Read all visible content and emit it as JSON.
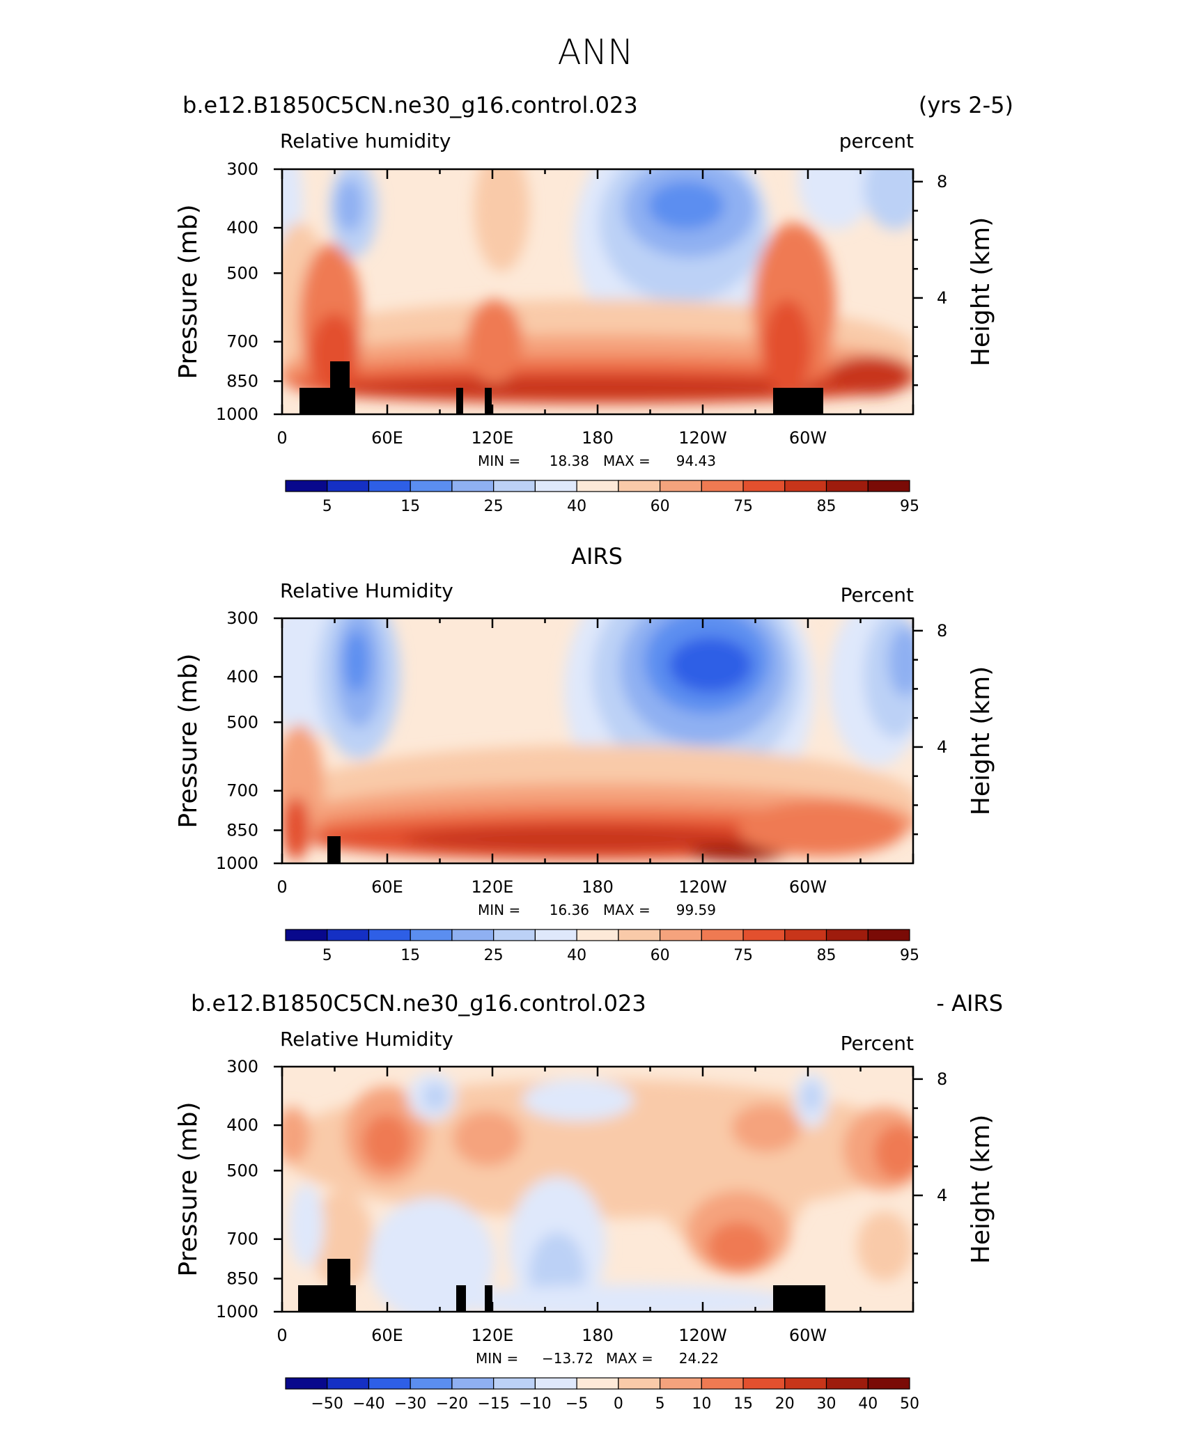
{
  "page": {
    "title": "ANN"
  },
  "panels": [
    {
      "left_title": "b.e12.B1850C5CN.ne30_g16.control.023",
      "right_title": "(yrs 2-5)",
      "var_label": "Relative humidity",
      "units": "percent",
      "min_label": "MIN =",
      "min_value": "18.38",
      "max_label": "MAX =",
      "max_value": "94.43"
    },
    {
      "left_title": "",
      "center_title": "AIRS",
      "right_title": "",
      "var_label": "Relative Humidity",
      "units": "Percent",
      "min_label": "MIN =",
      "min_value": "16.36",
      "max_label": "MAX =",
      "max_value": "99.59"
    },
    {
      "left_title": "b.e12.B1850C5CN.ne30_g16.control.023",
      "right_title": "- AIRS",
      "var_label": "Relative Humidity",
      "units": "Percent",
      "min_label": "MIN =",
      "min_value": "−13.72",
      "max_label": "MAX =",
      "max_value": "24.22"
    }
  ],
  "colors": {
    "scale": [
      "#08088c",
      "#1530c4",
      "#2e5fe6",
      "#5b8ef0",
      "#8fb0f2",
      "#bcd1f6",
      "#dfe8fb",
      "#fde9d8",
      "#f9caa9",
      "#f5a37d",
      "#ef7a52",
      "#e3502e",
      "#c8351a",
      "#9e1c0d",
      "#7a0b06"
    ],
    "land": "#000000"
  },
  "chart_data": [
    {
      "type": "heatmap",
      "subtitle": "Relative humidity",
      "units": "percent",
      "xlabel": "",
      "ylabel": "Pressure (mb)",
      "ylabel_right": "Height (km)",
      "x_ticks": [
        "0",
        "60E",
        "120E",
        "180",
        "120W",
        "60W"
      ],
      "x_tick_values": [
        0,
        60,
        120,
        180,
        240,
        300
      ],
      "xlim": [
        0,
        360
      ],
      "y_ticks": [
        300,
        400,
        500,
        700,
        850,
        1000
      ],
      "ylim": [
        1000,
        300
      ],
      "y_scale": "log",
      "y2_ticks": [
        4,
        8
      ],
      "min": 18.38,
      "max": 94.43,
      "colorbar_labels": [
        "5",
        "15",
        "25",
        "40",
        "60",
        "75",
        "85",
        "95"
      ],
      "colorbar_levels": [
        5,
        10,
        15,
        20,
        25,
        30,
        40,
        50,
        60,
        70,
        75,
        80,
        85,
        90,
        95
      ]
    },
    {
      "type": "heatmap",
      "title": "AIRS",
      "subtitle": "Relative Humidity",
      "units": "Percent",
      "ylabel": "Pressure (mb)",
      "ylabel_right": "Height (km)",
      "x_ticks": [
        "0",
        "60E",
        "120E",
        "180",
        "120W",
        "60W"
      ],
      "x_tick_values": [
        0,
        60,
        120,
        180,
        240,
        300
      ],
      "xlim": [
        0,
        360
      ],
      "y_ticks": [
        300,
        400,
        500,
        700,
        850,
        1000
      ],
      "ylim": [
        1000,
        300
      ],
      "y_scale": "log",
      "y2_ticks": [
        4,
        8
      ],
      "min": 16.36,
      "max": 99.59,
      "colorbar_labels": [
        "5",
        "15",
        "25",
        "40",
        "60",
        "75",
        "85",
        "95"
      ],
      "colorbar_levels": [
        5,
        10,
        15,
        20,
        25,
        30,
        40,
        50,
        60,
        70,
        75,
        80,
        85,
        90,
        95
      ]
    },
    {
      "type": "heatmap",
      "subtitle": "Relative Humidity",
      "units": "Percent",
      "ylabel": "Pressure (mb)",
      "ylabel_right": "Height (km)",
      "x_ticks": [
        "0",
        "60E",
        "120E",
        "180",
        "120W",
        "60W"
      ],
      "x_tick_values": [
        0,
        60,
        120,
        180,
        240,
        300
      ],
      "xlim": [
        0,
        360
      ],
      "y_ticks": [
        300,
        400,
        500,
        700,
        850,
        1000
      ],
      "ylim": [
        1000,
        300
      ],
      "y_scale": "log",
      "y2_ticks": [
        4,
        8
      ],
      "min": -13.72,
      "max": 24.22,
      "colorbar_labels": [
        "−50",
        "−40",
        "−30",
        "−20",
        "−15",
        "−10",
        "−5",
        "0",
        "5",
        "10",
        "15",
        "20",
        "30",
        "40",
        "50"
      ],
      "colorbar_levels": [
        -50,
        -40,
        -30,
        -20,
        -15,
        -10,
        -5,
        0,
        5,
        10,
        15,
        20,
        30,
        40,
        50
      ]
    }
  ]
}
